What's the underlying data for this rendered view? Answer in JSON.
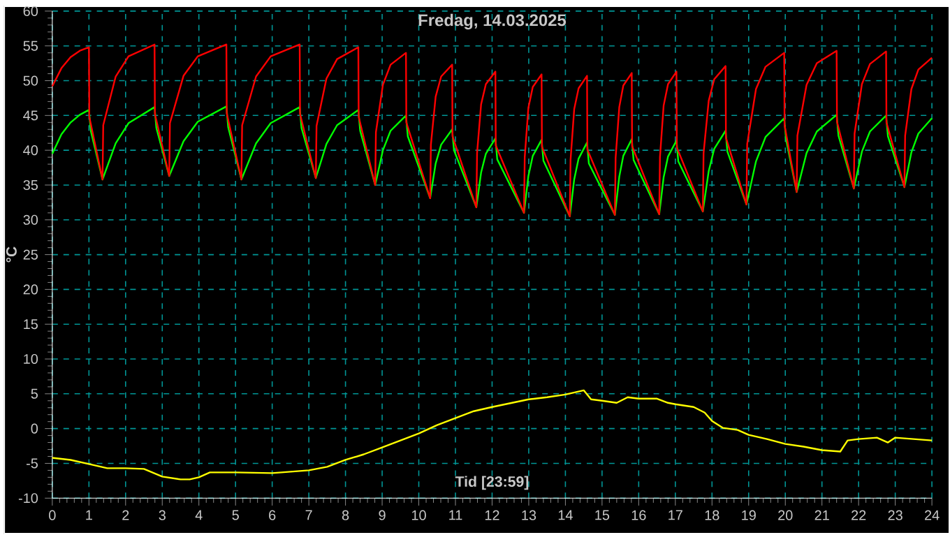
{
  "chart_data": {
    "type": "line",
    "title": "Fredag, 14.03.2025",
    "xlabel": "Tid [23:59]",
    "ylabel": "°C",
    "xlim": [
      0,
      24
    ],
    "ylim": [
      -10,
      60
    ],
    "xticks": [
      0,
      1,
      2,
      3,
      4,
      5,
      6,
      7,
      8,
      9,
      10,
      11,
      12,
      13,
      14,
      15,
      16,
      17,
      18,
      19,
      20,
      21,
      22,
      23,
      24
    ],
    "yticks": [
      -10,
      -5,
      0,
      5,
      10,
      15,
      20,
      25,
      30,
      35,
      40,
      45,
      50,
      55,
      60
    ],
    "grid": true,
    "marker": "none",
    "line_style": "solid",
    "series": [
      {
        "color": "#00ff00",
        "x": [
          0,
          0.25,
          0.5,
          0.75,
          1.0,
          1.05,
          1.37,
          1.73,
          2.08,
          2.79,
          2.84,
          3.19,
          3.58,
          3.97,
          4.75,
          4.8,
          5.16,
          5.56,
          5.96,
          6.75,
          6.8,
          7.19,
          7.48,
          7.77,
          8.35,
          8.4,
          8.81,
          9.02,
          9.23,
          9.65,
          9.7,
          10.31,
          10.46,
          10.61,
          10.91,
          10.96,
          11.57,
          11.7,
          11.83,
          12.09,
          12.14,
          12.87,
          12.99,
          13.11,
          13.35,
          13.4,
          14.12,
          14.24,
          14.36,
          14.59,
          14.64,
          15.35,
          15.47,
          15.58,
          15.81,
          15.86,
          16.56,
          16.68,
          16.8,
          17.03,
          17.08,
          17.75,
          17.91,
          18.06,
          18.37,
          18.42,
          18.94,
          19.2,
          19.46,
          19.97,
          20.02,
          20.31,
          20.58,
          20.86,
          21.4,
          21.45,
          21.87,
          22.09,
          22.31,
          22.75,
          22.8,
          23.25,
          23.44,
          23.63,
          24.0
        ],
        "values": [
          39.5,
          42.3,
          44.0,
          45.1,
          45.8,
          42.8,
          35.8,
          41.0,
          43.9,
          46.2,
          43.2,
          36.3,
          41.3,
          44.1,
          46.3,
          43.3,
          35.8,
          41.0,
          43.9,
          46.2,
          43.2,
          36.0,
          40.9,
          43.6,
          45.8,
          42.8,
          35.0,
          40.0,
          42.8,
          45.0,
          42.0,
          33.1,
          38.1,
          40.8,
          43.0,
          40.0,
          31.8,
          36.8,
          39.5,
          41.7,
          38.7,
          31.0,
          36.3,
          39.2,
          41.5,
          38.5,
          30.5,
          35.8,
          38.8,
          41.1,
          38.1,
          30.7,
          36.2,
          39.2,
          41.6,
          38.6,
          30.8,
          36.1,
          39.1,
          41.4,
          38.4,
          31.2,
          37.0,
          40.2,
          42.8,
          39.8,
          32.2,
          38.4,
          41.9,
          44.6,
          41.6,
          34.0,
          39.6,
          42.7,
          45.1,
          42.1,
          34.5,
          39.8,
          42.7,
          45.0,
          42.0,
          34.7,
          39.7,
          42.4,
          44.6
        ]
      },
      {
        "color": "#ff0000",
        "x": [
          0,
          0.25,
          0.5,
          0.75,
          1.0,
          1.01,
          1.37,
          1.39,
          1.73,
          2.08,
          2.79,
          2.8,
          3.19,
          3.21,
          3.58,
          3.97,
          4.75,
          4.76,
          5.16,
          5.18,
          5.56,
          5.96,
          6.75,
          6.76,
          7.19,
          7.21,
          7.48,
          7.77,
          8.35,
          8.36,
          8.81,
          8.83,
          9.02,
          9.23,
          9.65,
          9.66,
          10.31,
          10.33,
          10.46,
          10.61,
          10.91,
          10.92,
          11.57,
          11.59,
          11.7,
          11.83,
          12.09,
          12.1,
          12.87,
          12.89,
          12.99,
          13.11,
          13.35,
          13.36,
          14.12,
          14.14,
          14.24,
          14.36,
          14.59,
          14.6,
          15.35,
          15.37,
          15.47,
          15.58,
          15.81,
          15.82,
          16.56,
          16.58,
          16.68,
          16.8,
          17.03,
          17.04,
          17.75,
          17.77,
          17.91,
          18.06,
          18.37,
          18.38,
          18.94,
          18.96,
          19.2,
          19.46,
          19.97,
          19.98,
          20.31,
          20.33,
          20.58,
          20.86,
          21.4,
          21.41,
          21.87,
          21.89,
          22.09,
          22.31,
          22.75,
          22.76,
          23.25,
          23.27,
          23.44,
          23.63,
          24.0
        ],
        "values": [
          49.2,
          51.8,
          53.4,
          54.3,
          54.8,
          44.8,
          35.8,
          43.6,
          50.6,
          53.5,
          55.2,
          45.2,
          36.3,
          43.9,
          50.7,
          53.5,
          55.2,
          45.3,
          35.8,
          43.6,
          50.6,
          53.5,
          55.2,
          45.2,
          36.0,
          43.5,
          50.3,
          53.1,
          54.8,
          44.8,
          35.0,
          42.6,
          49.4,
          52.3,
          54.0,
          44.0,
          33.1,
          40.8,
          47.7,
          50.6,
          52.3,
          42.0,
          31.8,
          39.6,
          46.6,
          49.5,
          51.3,
          40.7,
          31.0,
          39.0,
          46.1,
          49.1,
          50.9,
          40.5,
          30.5,
          38.6,
          45.9,
          48.9,
          50.7,
          40.1,
          30.7,
          38.9,
          46.2,
          49.3,
          51.1,
          40.6,
          30.8,
          39.0,
          46.4,
          49.5,
          51.3,
          40.4,
          31.2,
          39.6,
          47.1,
          50.2,
          52.1,
          41.8,
          32.2,
          40.9,
          48.8,
          52.0,
          54.0,
          43.6,
          34.0,
          42.1,
          49.4,
          52.5,
          54.3,
          44.1,
          34.5,
          42.4,
          49.5,
          52.4,
          54.2,
          44.0,
          34.7,
          42.1,
          48.8,
          51.6,
          53.3
        ]
      },
      {
        "color": "#ffff00",
        "x": [
          0,
          0.5,
          1,
          1.5,
          2,
          2.5,
          3,
          3.5,
          3.75,
          4,
          4.3,
          5,
          6,
          7,
          7.5,
          8,
          8.5,
          9,
          9.5,
          10,
          10.5,
          11,
          11.5,
          12,
          13,
          13.5,
          14,
          14.5,
          14.7,
          15,
          15.4,
          15.7,
          16,
          16.5,
          16.8,
          17,
          17.5,
          17.8,
          18,
          18.3,
          18.7,
          19,
          19.5,
          20,
          20.5,
          21,
          21.5,
          21.7,
          22,
          22.5,
          22.8,
          23,
          23.5,
          24
        ],
        "values": [
          -4.2,
          -4.5,
          -5.1,
          -5.7,
          -5.7,
          -5.8,
          -6.9,
          -7.3,
          -7.3,
          -7.0,
          -6.3,
          -6.3,
          -6.4,
          -6.0,
          -5.5,
          -4.5,
          -3.7,
          -2.7,
          -1.7,
          -0.7,
          0.5,
          1.5,
          2.5,
          3.1,
          4.2,
          4.5,
          4.9,
          5.5,
          4.2,
          4.0,
          3.7,
          4.5,
          4.3,
          4.3,
          3.7,
          3.5,
          3.1,
          2.3,
          1.1,
          0.1,
          -0.2,
          -0.9,
          -1.5,
          -2.2,
          -2.6,
          -3.1,
          -3.3,
          -1.7,
          -1.5,
          -1.3,
          -2.0,
          -1.3,
          -1.5,
          -1.7
        ]
      }
    ]
  }
}
